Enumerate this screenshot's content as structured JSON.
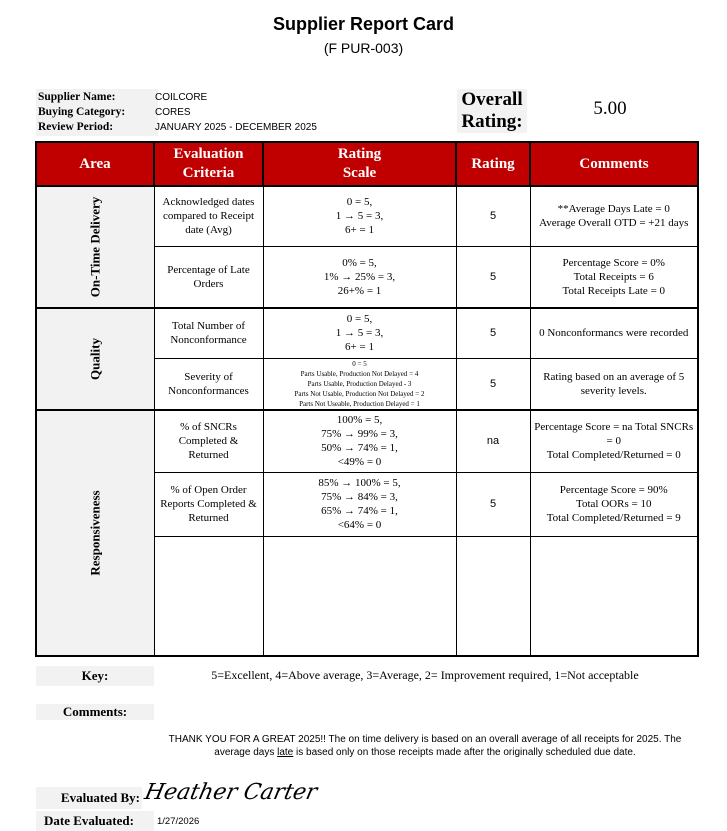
{
  "header": {
    "title": "Supplier Report Card",
    "form_code": "(F PUR-003)"
  },
  "supplier": {
    "name_label": "Supplier Name:",
    "name": "COILCORE",
    "category_label": "Buying Category:",
    "category": "CORES",
    "period_label": "Review Period:",
    "period": "JANUARY 2025 - DECEMBER 2025"
  },
  "overall": {
    "label_1": "Overall",
    "label_2": "Rating:",
    "value": "5.00"
  },
  "table": {
    "headers": [
      "Area",
      "Evaluation Criteria",
      "Rating Scale",
      "Rating",
      "Comments"
    ],
    "accent_color": "#c00000",
    "areas": [
      {
        "name": "On-Time Delivery",
        "rows": [
          {
            "criteria": "Acknowledged dates compared to Receipt date (Avg)",
            "scale": [
              "0 = 5,",
              "1 → 5 = 3,",
              "6+ = 1"
            ],
            "rating": "5",
            "comments": [
              "**Average Days Late = 0",
              "Average Overall OTD = +21 days"
            ]
          },
          {
            "criteria": "Percentage of Late Orders",
            "scale": [
              "0% = 5,",
              "1% → 25% = 3,",
              "26+% = 1"
            ],
            "rating": "5",
            "comments": [
              "Percentage Score = 0%",
              "Total Receipts = 6",
              "Total Receipts Late = 0"
            ]
          }
        ]
      },
      {
        "name": "Quality",
        "rows": [
          {
            "criteria": "Total Number of Nonconformance",
            "scale": [
              "0 = 5,",
              "1 → 5 = 3,",
              "6+ = 1"
            ],
            "rating": "5",
            "comments": [
              "0 Nonconformancs were recorded"
            ]
          },
          {
            "criteria": "Severity of Nonconformances",
            "scale": [
              "0 = 5",
              "Parts Usable, Production Not Delayed = 4",
              "Parts Usable, Production Delayed - 3",
              "Parts Not Usable, Production Not Delayed = 2",
              "Parts Not Useable, Production Delayed = 1"
            ],
            "rating": "5",
            "comments": [
              "Rating based on an average of 5 severity levels."
            ]
          }
        ]
      },
      {
        "name": "Responsiveness",
        "rows": [
          {
            "criteria": "% of SNCRs Completed & Returned",
            "scale": [
              "100% = 5,",
              "75% → 99% = 3,",
              "50% → 74% = 1,",
              "<49% = 0"
            ],
            "rating": "na",
            "comments": [
              "Percentage Score = na  Total SNCRs = 0",
              "Total Completed/Returned = 0"
            ]
          },
          {
            "criteria": "% of Open Order Reports Completed & Returned",
            "scale": [
              "85% → 100% = 5,",
              "75% → 84% = 3,",
              "65% → 74% = 1,",
              "<64% = 0"
            ],
            "rating": "5",
            "comments": [
              "Percentage Score = 90%",
              "Total OORs = 10",
              "Total Completed/Returned = 9"
            ]
          }
        ]
      }
    ]
  },
  "key": {
    "label": "Key:",
    "text": "5=Excellent, 4=Above average, 3=Average, 2= Improvement required, 1=Not acceptable"
  },
  "comments": {
    "label": "Comments:",
    "text_1": "THANK YOU FOR A GREAT 2025!!  The on time delivery is based on an overall average of all receipts for 2025. The average days ",
    "text_underlined": "late",
    "text_2": " is based only on those receipts made after the originally scheduled due date."
  },
  "evaluation": {
    "by_label": "Evaluated By:",
    "signature": "Heather Carter",
    "date_label": "Date Evaluated:",
    "date": "1/27/2026"
  }
}
